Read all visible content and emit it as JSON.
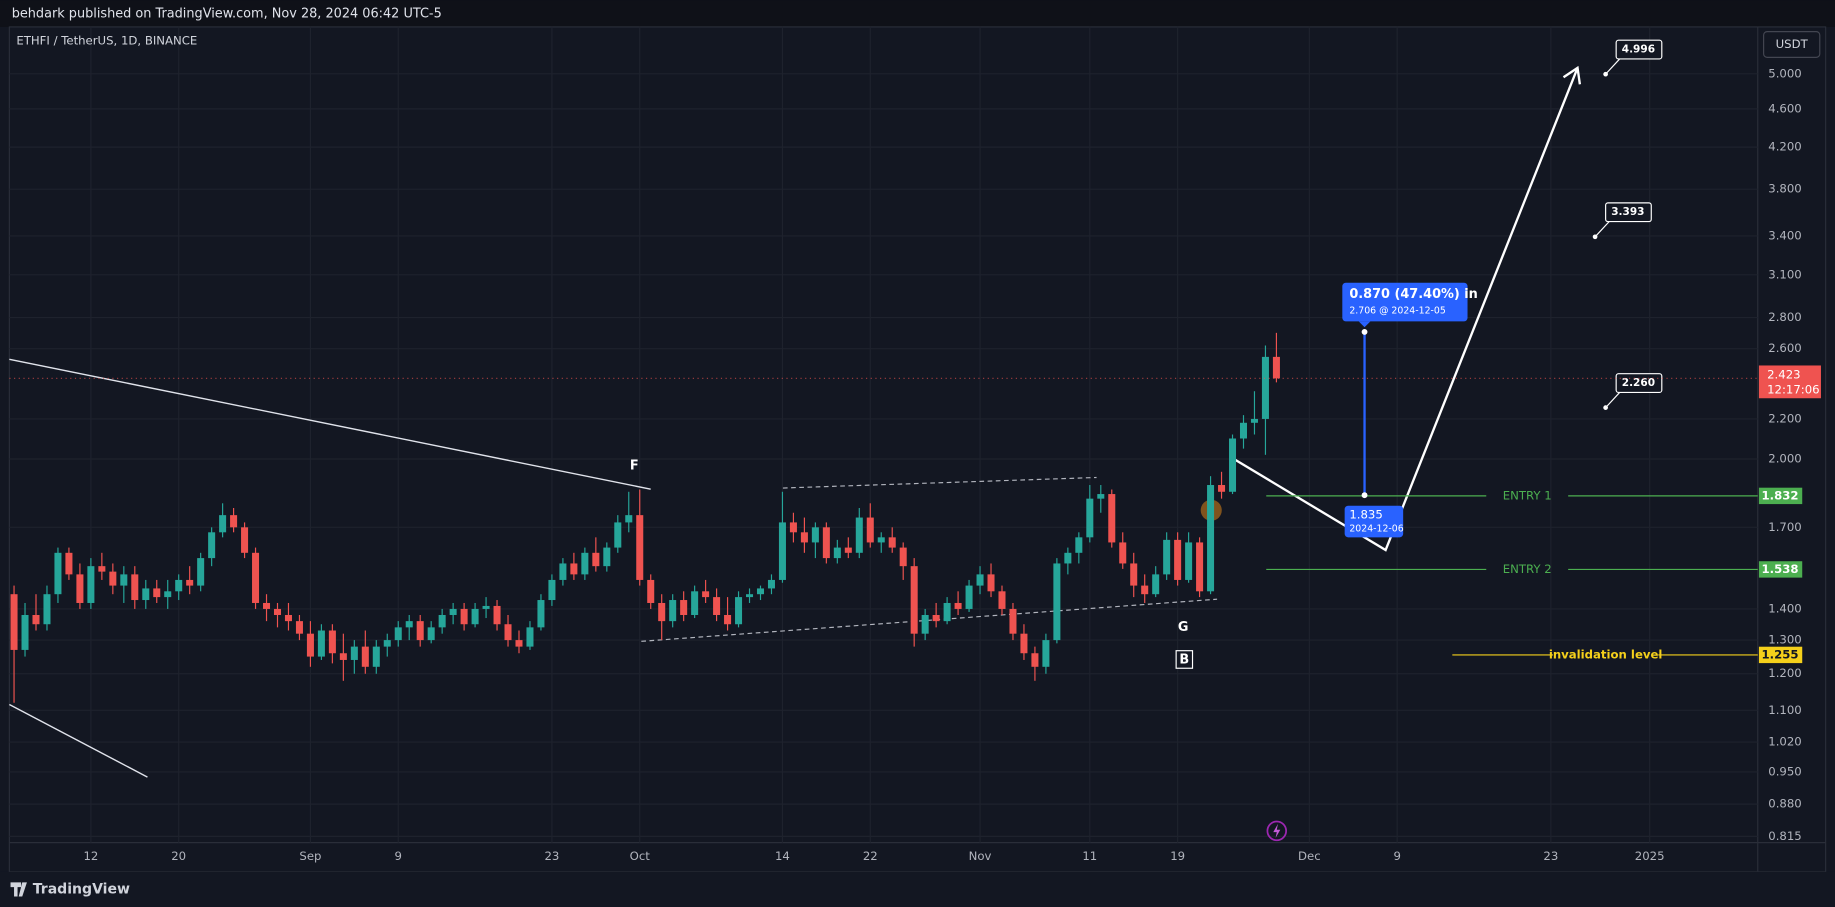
{
  "chart_data": {
    "type": "candlestick",
    "header": "behdark published on TradingView.com, Nov 28, 2024 06:42 UTC-5",
    "symbol": "ETHFI / TetherUS, 1D, BINANCE",
    "currency": "USDT",
    "brand": "TradingView",
    "log": true,
    "grid": true,
    "up_color": "#26a69a",
    "down_color": "#ef5350",
    "ylim": [
      0.803,
      5.59
    ],
    "yticks": [
      {
        "value": 5,
        "label": "5.000"
      },
      {
        "value": 4.6,
        "label": "4.600"
      },
      {
        "value": 4.2,
        "label": "4.200"
      },
      {
        "value": 3.8,
        "label": "3.800"
      },
      {
        "value": 3.4,
        "label": "3.400"
      },
      {
        "value": 3.1,
        "label": "3.100"
      },
      {
        "value": 2.8,
        "label": "2.800"
      },
      {
        "value": 2.6,
        "label": "2.600"
      },
      {
        "value": 2.2,
        "label": "2.200"
      },
      {
        "value": 2,
        "label": "2.000"
      },
      {
        "value": 1.7,
        "label": "1.700"
      },
      {
        "value": 1.4,
        "label": "1.400"
      },
      {
        "value": 1.3,
        "label": "1.300"
      },
      {
        "value": 1.2,
        "label": "1.200"
      },
      {
        "value": 1.1,
        "label": "1.100"
      },
      {
        "value": 1.02,
        "label": "1.020"
      },
      {
        "value": 0.95,
        "label": "0.950"
      },
      {
        "value": 0.88,
        "label": "0.880"
      },
      {
        "value": 0.815,
        "label": "0.815"
      }
    ],
    "xticks": [
      {
        "value": "2024-08-12",
        "label": "12"
      },
      {
        "value": "2024-08-20",
        "label": "20"
      },
      {
        "value": "2024-09-01",
        "label": "Sep"
      },
      {
        "value": "2024-09-09",
        "label": "9"
      },
      {
        "value": "2024-09-23",
        "label": "23"
      },
      {
        "value": "2024-10-01",
        "label": "Oct"
      },
      {
        "value": "2024-10-14",
        "label": "14"
      },
      {
        "value": "2024-10-22",
        "label": "22"
      },
      {
        "value": "2024-11-01",
        "label": "Nov"
      },
      {
        "value": "2024-11-11",
        "label": "11"
      },
      {
        "value": "2024-11-19",
        "label": "19"
      },
      {
        "value": "2024-12-01",
        "label": "Dec"
      },
      {
        "value": "2024-12-09",
        "label": "9"
      },
      {
        "value": "2024-12-23",
        "label": "23"
      },
      {
        "value": "2025-01-01",
        "label": "2025"
      }
    ],
    "x": [
      "2024-08-05",
      "2024-08-06",
      "2024-08-07",
      "2024-08-08",
      "2024-08-09",
      "2024-08-10",
      "2024-08-11",
      "2024-08-12",
      "2024-08-13",
      "2024-08-14",
      "2024-08-15",
      "2024-08-16",
      "2024-08-17",
      "2024-08-18",
      "2024-08-19",
      "2024-08-20",
      "2024-08-21",
      "2024-08-22",
      "2024-08-23",
      "2024-08-24",
      "2024-08-25",
      "2024-08-26",
      "2024-08-27",
      "2024-08-28",
      "2024-08-29",
      "2024-08-30",
      "2024-08-31",
      "2024-09-01",
      "2024-09-02",
      "2024-09-03",
      "2024-09-04",
      "2024-09-05",
      "2024-09-06",
      "2024-09-07",
      "2024-09-08",
      "2024-09-09",
      "2024-09-10",
      "2024-09-11",
      "2024-09-12",
      "2024-09-13",
      "2024-09-14",
      "2024-09-15",
      "2024-09-16",
      "2024-09-17",
      "2024-09-18",
      "2024-09-19",
      "2024-09-20",
      "2024-09-21",
      "2024-09-22",
      "2024-09-23",
      "2024-09-24",
      "2024-09-25",
      "2024-09-26",
      "2024-09-27",
      "2024-09-28",
      "2024-09-29",
      "2024-09-30",
      "2024-10-01",
      "2024-10-02",
      "2024-10-03",
      "2024-10-04",
      "2024-10-05",
      "2024-10-06",
      "2024-10-07",
      "2024-10-08",
      "2024-10-09",
      "2024-10-10",
      "2024-10-11",
      "2024-10-12",
      "2024-10-13",
      "2024-10-14",
      "2024-10-15",
      "2024-10-16",
      "2024-10-17",
      "2024-10-18",
      "2024-10-19",
      "2024-10-20",
      "2024-10-21",
      "2024-10-22",
      "2024-10-23",
      "2024-10-24",
      "2024-10-25",
      "2024-10-26",
      "2024-10-27",
      "2024-10-28",
      "2024-10-29",
      "2024-10-30",
      "2024-10-31",
      "2024-11-01",
      "2024-11-02",
      "2024-11-03",
      "2024-11-04",
      "2024-11-05",
      "2024-11-06",
      "2024-11-07",
      "2024-11-08",
      "2024-11-09",
      "2024-11-10",
      "2024-11-11",
      "2024-11-12",
      "2024-11-13",
      "2024-11-14",
      "2024-11-15",
      "2024-11-16",
      "2024-11-17",
      "2024-11-18",
      "2024-11-19",
      "2024-11-20",
      "2024-11-21",
      "2024-11-22",
      "2024-11-23",
      "2024-11-24",
      "2024-11-25",
      "2024-11-26",
      "2024-11-27",
      "2024-11-28"
    ],
    "ohlc": [
      [
        1.45,
        1.48,
        1.12,
        1.27
      ],
      [
        1.27,
        1.42,
        1.25,
        1.38
      ],
      [
        1.38,
        1.45,
        1.33,
        1.35
      ],
      [
        1.35,
        1.48,
        1.33,
        1.45
      ],
      [
        1.45,
        1.62,
        1.42,
        1.6
      ],
      [
        1.6,
        1.62,
        1.5,
        1.52
      ],
      [
        1.52,
        1.56,
        1.4,
        1.42
      ],
      [
        1.42,
        1.58,
        1.4,
        1.55
      ],
      [
        1.55,
        1.6,
        1.5,
        1.53
      ],
      [
        1.53,
        1.56,
        1.45,
        1.48
      ],
      [
        1.48,
        1.55,
        1.42,
        1.52
      ],
      [
        1.52,
        1.55,
        1.4,
        1.43
      ],
      [
        1.43,
        1.5,
        1.4,
        1.47
      ],
      [
        1.47,
        1.5,
        1.42,
        1.44
      ],
      [
        1.44,
        1.5,
        1.4,
        1.46
      ],
      [
        1.46,
        1.52,
        1.43,
        1.5
      ],
      [
        1.5,
        1.55,
        1.45,
        1.48
      ],
      [
        1.48,
        1.6,
        1.46,
        1.58
      ],
      [
        1.58,
        1.7,
        1.55,
        1.68
      ],
      [
        1.68,
        1.8,
        1.66,
        1.75
      ],
      [
        1.75,
        1.78,
        1.68,
        1.7
      ],
      [
        1.7,
        1.72,
        1.58,
        1.6
      ],
      [
        1.6,
        1.62,
        1.4,
        1.42
      ],
      [
        1.42,
        1.45,
        1.36,
        1.4
      ],
      [
        1.4,
        1.42,
        1.34,
        1.38
      ],
      [
        1.38,
        1.42,
        1.33,
        1.36
      ],
      [
        1.36,
        1.38,
        1.3,
        1.32
      ],
      [
        1.32,
        1.36,
        1.22,
        1.25
      ],
      [
        1.25,
        1.35,
        1.24,
        1.33
      ],
      [
        1.33,
        1.35,
        1.23,
        1.26
      ],
      [
        1.26,
        1.32,
        1.18,
        1.24
      ],
      [
        1.24,
        1.3,
        1.2,
        1.28
      ],
      [
        1.28,
        1.33,
        1.2,
        1.22
      ],
      [
        1.22,
        1.3,
        1.2,
        1.28
      ],
      [
        1.28,
        1.32,
        1.25,
        1.3
      ],
      [
        1.3,
        1.36,
        1.28,
        1.34
      ],
      [
        1.34,
        1.38,
        1.3,
        1.36
      ],
      [
        1.36,
        1.38,
        1.28,
        1.3
      ],
      [
        1.3,
        1.36,
        1.29,
        1.34
      ],
      [
        1.34,
        1.4,
        1.32,
        1.38
      ],
      [
        1.38,
        1.42,
        1.35,
        1.4
      ],
      [
        1.4,
        1.42,
        1.33,
        1.35
      ],
      [
        1.35,
        1.42,
        1.34,
        1.4
      ],
      [
        1.4,
        1.44,
        1.37,
        1.41
      ],
      [
        1.41,
        1.43,
        1.33,
        1.35
      ],
      [
        1.35,
        1.38,
        1.28,
        1.3
      ],
      [
        1.3,
        1.33,
        1.26,
        1.28
      ],
      [
        1.28,
        1.36,
        1.27,
        1.34
      ],
      [
        1.34,
        1.45,
        1.33,
        1.43
      ],
      [
        1.43,
        1.52,
        1.41,
        1.5
      ],
      [
        1.5,
        1.58,
        1.48,
        1.56
      ],
      [
        1.56,
        1.6,
        1.5,
        1.52
      ],
      [
        1.52,
        1.62,
        1.5,
        1.6
      ],
      [
        1.6,
        1.66,
        1.53,
        1.55
      ],
      [
        1.55,
        1.64,
        1.53,
        1.62
      ],
      [
        1.62,
        1.75,
        1.6,
        1.72
      ],
      [
        1.72,
        1.85,
        1.68,
        1.75
      ],
      [
        1.75,
        1.86,
        1.48,
        1.5
      ],
      [
        1.5,
        1.52,
        1.4,
        1.42
      ],
      [
        1.42,
        1.45,
        1.3,
        1.36
      ],
      [
        1.36,
        1.45,
        1.34,
        1.43
      ],
      [
        1.43,
        1.46,
        1.36,
        1.38
      ],
      [
        1.38,
        1.48,
        1.37,
        1.46
      ],
      [
        1.46,
        1.5,
        1.42,
        1.44
      ],
      [
        1.44,
        1.47,
        1.36,
        1.38
      ],
      [
        1.38,
        1.44,
        1.33,
        1.35
      ],
      [
        1.35,
        1.46,
        1.34,
        1.44
      ],
      [
        1.44,
        1.47,
        1.42,
        1.45
      ],
      [
        1.45,
        1.48,
        1.43,
        1.47
      ],
      [
        1.47,
        1.52,
        1.45,
        1.5
      ],
      [
        1.5,
        1.85,
        1.49,
        1.72
      ],
      [
        1.72,
        1.76,
        1.64,
        1.68
      ],
      [
        1.68,
        1.74,
        1.6,
        1.64
      ],
      [
        1.64,
        1.72,
        1.58,
        1.7
      ],
      [
        1.7,
        1.72,
        1.56,
        1.58
      ],
      [
        1.58,
        1.65,
        1.56,
        1.62
      ],
      [
        1.62,
        1.66,
        1.58,
        1.6
      ],
      [
        1.6,
        1.78,
        1.58,
        1.74
      ],
      [
        1.74,
        1.8,
        1.62,
        1.64
      ],
      [
        1.64,
        1.68,
        1.6,
        1.66
      ],
      [
        1.66,
        1.7,
        1.6,
        1.62
      ],
      [
        1.62,
        1.64,
        1.5,
        1.55
      ],
      [
        1.55,
        1.58,
        1.28,
        1.32
      ],
      [
        1.32,
        1.4,
        1.3,
        1.38
      ],
      [
        1.38,
        1.42,
        1.34,
        1.36
      ],
      [
        1.36,
        1.44,
        1.35,
        1.42
      ],
      [
        1.42,
        1.46,
        1.38,
        1.4
      ],
      [
        1.4,
        1.5,
        1.39,
        1.48
      ],
      [
        1.48,
        1.55,
        1.45,
        1.52
      ],
      [
        1.52,
        1.56,
        1.44,
        1.46
      ],
      [
        1.46,
        1.48,
        1.38,
        1.4
      ],
      [
        1.4,
        1.42,
        1.3,
        1.32
      ],
      [
        1.32,
        1.35,
        1.24,
        1.26
      ],
      [
        1.26,
        1.28,
        1.18,
        1.22
      ],
      [
        1.22,
        1.32,
        1.2,
        1.3
      ],
      [
        1.3,
        1.58,
        1.29,
        1.56
      ],
      [
        1.56,
        1.62,
        1.52,
        1.6
      ],
      [
        1.6,
        1.68,
        1.56,
        1.66
      ],
      [
        1.66,
        1.88,
        1.64,
        1.82
      ],
      [
        1.82,
        1.88,
        1.76,
        1.84
      ],
      [
        1.84,
        1.86,
        1.62,
        1.64
      ],
      [
        1.64,
        1.68,
        1.54,
        1.56
      ],
      [
        1.56,
        1.6,
        1.44,
        1.48
      ],
      [
        1.48,
        1.52,
        1.42,
        1.45
      ],
      [
        1.45,
        1.55,
        1.44,
        1.52
      ],
      [
        1.52,
        1.68,
        1.5,
        1.65
      ],
      [
        1.65,
        1.68,
        1.48,
        1.5
      ],
      [
        1.5,
        1.68,
        1.49,
        1.64
      ],
      [
        1.64,
        1.66,
        1.44,
        1.46
      ],
      [
        1.46,
        1.92,
        1.45,
        1.88
      ],
      [
        1.88,
        1.94,
        1.82,
        1.85
      ],
      [
        1.85,
        2.12,
        1.84,
        2.1
      ],
      [
        2.1,
        2.22,
        2.05,
        2.18
      ],
      [
        2.18,
        2.35,
        2.12,
        2.2
      ],
      [
        2.2,
        2.62,
        2.02,
        2.55
      ],
      [
        2.55,
        2.7,
        2.4,
        2.423
      ]
    ],
    "last_price": 2.423,
    "countdown": "12:17:06",
    "levels": [
      {
        "label": "ENTRY 1",
        "value": 1.832,
        "color": "#4caf50"
      },
      {
        "label": "ENTRY 2",
        "value": 1.538,
        "color": "#4caf50"
      },
      {
        "label": "invalidation level",
        "value": 1.255,
        "color": "#f5d01b"
      }
    ],
    "targets": [
      4.996,
      3.393,
      {
        "value": 2.26,
        "label": "2.260"
      }
    ],
    "measure": {
      "text": "0.870 (47.40%) in",
      "to": {
        "value": 2.706,
        "label": "2.706 @ 2024-12-05"
      },
      "from": 1.835,
      "from_date": "2024-12-06"
    },
    "wave_labels": [
      "F",
      "G",
      "B"
    ]
  }
}
